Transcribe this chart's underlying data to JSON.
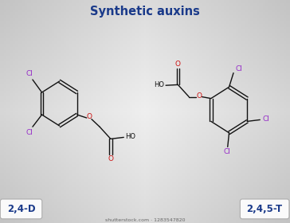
{
  "title": "Synthetic auxins",
  "title_color": "#1a3a8a",
  "title_fontsize": 10.5,
  "label_24d": "2,4-D",
  "label_245t": "2,4,5-T",
  "label_color": "#1a3a8a",
  "label_fontsize": 8.5,
  "bond_color": "#111111",
  "cl_color": "#9428c8",
  "o_color": "#cc1111",
  "ho_color": "#111111",
  "watermark": "shutterstock.com · 1283547820",
  "watermark_fontsize": 4.5,
  "bg_colors": [
    "#b0b0b0",
    "#d8d8d8",
    "#f2f2f2",
    "#d8d8d8",
    "#b0b0b0"
  ]
}
